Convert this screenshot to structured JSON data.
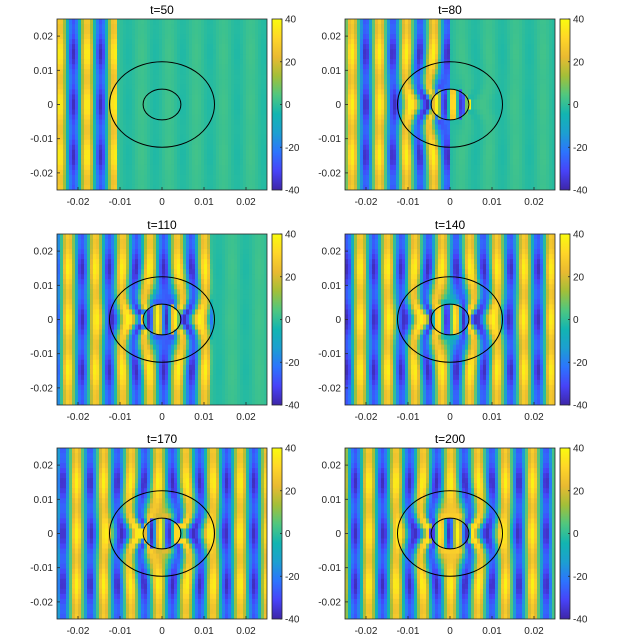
{
  "figure": {
    "layout": {
      "rows": 3,
      "cols": 2
    },
    "xlim": [
      -0.025,
      0.025
    ],
    "ylim": [
      -0.025,
      0.025
    ],
    "xticks": [
      -0.02,
      -0.01,
      0,
      0.01,
      0.02
    ],
    "xtick_labels": [
      "-0.02",
      "-0.01",
      "0",
      "0.01",
      "0.02"
    ],
    "yticks": [
      0.02,
      0.01,
      0,
      -0.01,
      -0.02
    ],
    "ytick_labels": [
      "0.02",
      "0.01",
      "0",
      "-0.01",
      "-0.02"
    ],
    "colorbar": {
      "clim": [
        -40,
        40
      ],
      "ticks": [
        40,
        20,
        0,
        -20,
        -40
      ],
      "tick_labels": [
        "40",
        "20",
        "0",
        "-20",
        "-40"
      ],
      "colormap": "parula",
      "colors": [
        "#3E26A8",
        "#4743F8",
        "#2C74FE",
        "#1C9FD1",
        "#12B5B1",
        "#50C77F",
        "#A3BF38",
        "#E9BA31",
        "#FFD628",
        "#F9FB0E"
      ]
    },
    "overlay": {
      "outer_circle_radius": 0.0125,
      "inner_circle_radius": 0.0045,
      "stroke_color": "#000000"
    }
  },
  "chart_data": [
    {
      "type": "heatmap",
      "title": "t=50",
      "time": 50,
      "front_x": -0.011,
      "xlim": [
        -0.025,
        0.025
      ],
      "ylim": [
        -0.025,
        0.025
      ],
      "clim": [
        -40,
        40
      ]
    },
    {
      "type": "heatmap",
      "title": "t=80",
      "time": 80,
      "front_x": 0.0,
      "xlim": [
        -0.025,
        0.025
      ],
      "ylim": [
        -0.025,
        0.025
      ],
      "clim": [
        -40,
        40
      ]
    },
    {
      "type": "heatmap",
      "title": "t=110",
      "time": 110,
      "front_x": 0.012,
      "xlim": [
        -0.025,
        0.025
      ],
      "ylim": [
        -0.025,
        0.025
      ],
      "clim": [
        -40,
        40
      ]
    },
    {
      "type": "heatmap",
      "title": "t=140",
      "time": 140,
      "front_x": 0.025,
      "xlim": [
        -0.025,
        0.025
      ],
      "ylim": [
        -0.025,
        0.025
      ],
      "clim": [
        -40,
        40
      ]
    },
    {
      "type": "heatmap",
      "title": "t=170",
      "time": 170,
      "front_x": 0.025,
      "xlim": [
        -0.025,
        0.025
      ],
      "ylim": [
        -0.025,
        0.025
      ],
      "clim": [
        -40,
        40
      ]
    },
    {
      "type": "heatmap",
      "title": "t=200",
      "time": 200,
      "front_x": 0.025,
      "xlim": [
        -0.025,
        0.025
      ],
      "ylim": [
        -0.025,
        0.025
      ],
      "clim": [
        -40,
        40
      ]
    }
  ]
}
